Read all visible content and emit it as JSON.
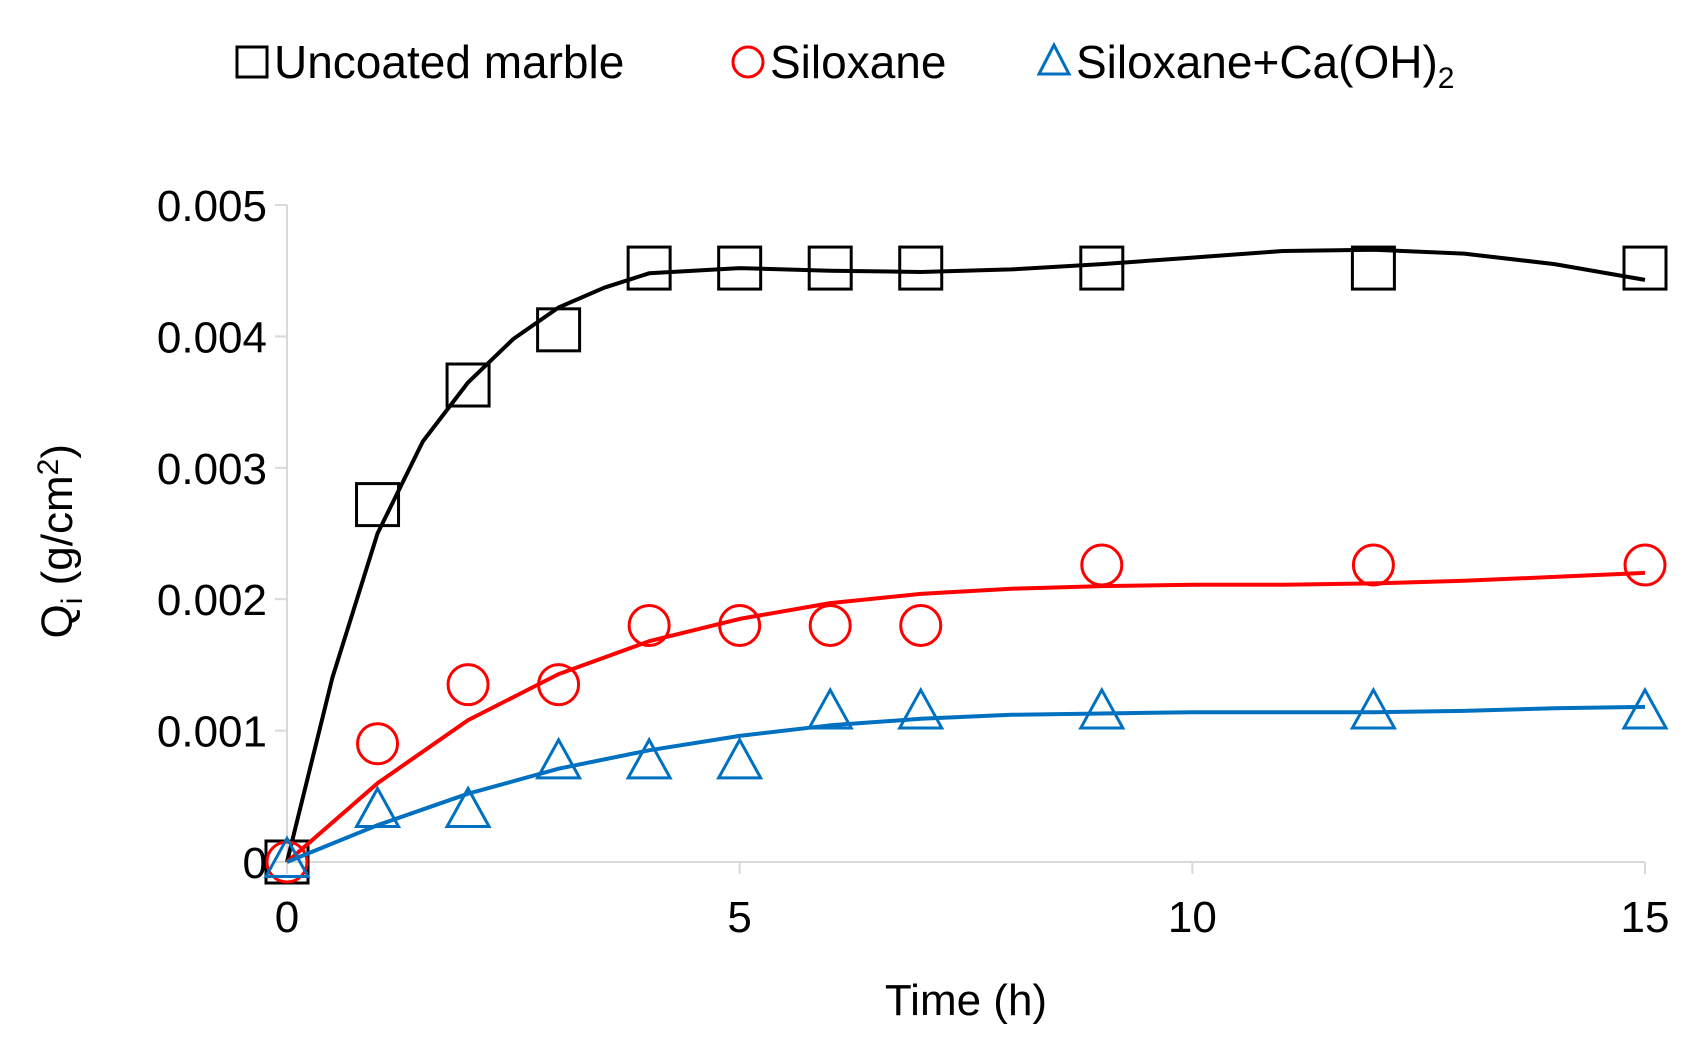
{
  "chart_data": {
    "type": "scatter",
    "title": "",
    "xlabel": "Time (h)",
    "ylabel": "Q",
    "ylabel_sub": "i",
    "ylabel_unit": " (g/cm",
    "ylabel_unit_sup": "2",
    "ylabel_close": ")",
    "xlim": [
      0,
      15
    ],
    "ylim": [
      0,
      0.005
    ],
    "xticks": [
      0,
      5,
      10,
      15
    ],
    "xtick_labels": [
      "0",
      "5",
      "10",
      "15"
    ],
    "yticks": [
      0,
      0.001,
      0.002,
      0.003,
      0.004,
      0.005
    ],
    "ytick_labels": [
      "0",
      "0.001",
      "0.002",
      "0.003",
      "0.004",
      "0.005"
    ],
    "grid": false,
    "legend_position": "top",
    "series": [
      {
        "name": "Uncoated marble",
        "marker": "square",
        "color": "#000000",
        "points": [
          [
            0,
            0
          ],
          [
            1,
            0.00272
          ],
          [
            2,
            0.00363
          ],
          [
            3,
            0.00405
          ],
          [
            4,
            0.00452
          ],
          [
            5,
            0.00452
          ],
          [
            6,
            0.00452
          ],
          [
            7,
            0.00452
          ],
          [
            9,
            0.00452
          ],
          [
            12,
            0.00452
          ],
          [
            15,
            0.00452
          ]
        ],
        "trend": [
          [
            0,
            0
          ],
          [
            0.5,
            0.0014
          ],
          [
            1,
            0.0025
          ],
          [
            1.5,
            0.0032
          ],
          [
            2,
            0.00365
          ],
          [
            2.5,
            0.00398
          ],
          [
            3,
            0.00422
          ],
          [
            3.5,
            0.00437
          ],
          [
            4,
            0.00448
          ],
          [
            5,
            0.00452
          ],
          [
            6,
            0.0045
          ],
          [
            7,
            0.00449
          ],
          [
            8,
            0.00451
          ],
          [
            9,
            0.00455
          ],
          [
            10,
            0.0046
          ],
          [
            11,
            0.00465
          ],
          [
            12,
            0.00466
          ],
          [
            13,
            0.00463
          ],
          [
            14,
            0.00455
          ],
          [
            15,
            0.00443
          ]
        ]
      },
      {
        "name": "Siloxane",
        "marker": "circle",
        "color": "#ff0000",
        "points": [
          [
            0,
            0
          ],
          [
            1,
            0.0009
          ],
          [
            2,
            0.00135
          ],
          [
            3,
            0.00135
          ],
          [
            4,
            0.0018
          ],
          [
            5,
            0.0018
          ],
          [
            6,
            0.0018
          ],
          [
            7,
            0.0018
          ],
          [
            9,
            0.00226
          ],
          [
            12,
            0.00226
          ],
          [
            15,
            0.00226
          ]
        ],
        "trend": [
          [
            0,
            0
          ],
          [
            1,
            0.0006
          ],
          [
            2,
            0.00108
          ],
          [
            3,
            0.00143
          ],
          [
            4,
            0.00168
          ],
          [
            5,
            0.00185
          ],
          [
            6,
            0.00197
          ],
          [
            7,
            0.00204
          ],
          [
            8,
            0.00208
          ],
          [
            9,
            0.0021
          ],
          [
            10,
            0.00211
          ],
          [
            11,
            0.00211
          ],
          [
            12,
            0.00212
          ],
          [
            13,
            0.00214
          ],
          [
            14,
            0.00217
          ],
          [
            15,
            0.0022
          ]
        ]
      },
      {
        "name": "Siloxane+Ca(OH)",
        "name_sub": "2",
        "marker": "triangle",
        "color": "#0070c0",
        "points": [
          [
            0,
            0
          ],
          [
            1,
            0.00038
          ],
          [
            2,
            0.00038
          ],
          [
            3,
            0.00075
          ],
          [
            4,
            0.00075
          ],
          [
            5,
            0.00075
          ],
          [
            6,
            0.00113
          ],
          [
            7,
            0.00113
          ],
          [
            9,
            0.00113
          ],
          [
            12,
            0.00113
          ],
          [
            15,
            0.00113
          ]
        ],
        "trend": [
          [
            0,
            0
          ],
          [
            1,
            0.00028
          ],
          [
            2,
            0.00052
          ],
          [
            3,
            0.00071
          ],
          [
            4,
            0.00085
          ],
          [
            5,
            0.00096
          ],
          [
            6,
            0.00104
          ],
          [
            7,
            0.00109
          ],
          [
            8,
            0.00112
          ],
          [
            9,
            0.00113
          ],
          [
            10,
            0.00114
          ],
          [
            11,
            0.00114
          ],
          [
            12,
            0.00114
          ],
          [
            13,
            0.00115
          ],
          [
            14,
            0.00117
          ],
          [
            15,
            0.00118
          ]
        ]
      }
    ]
  }
}
